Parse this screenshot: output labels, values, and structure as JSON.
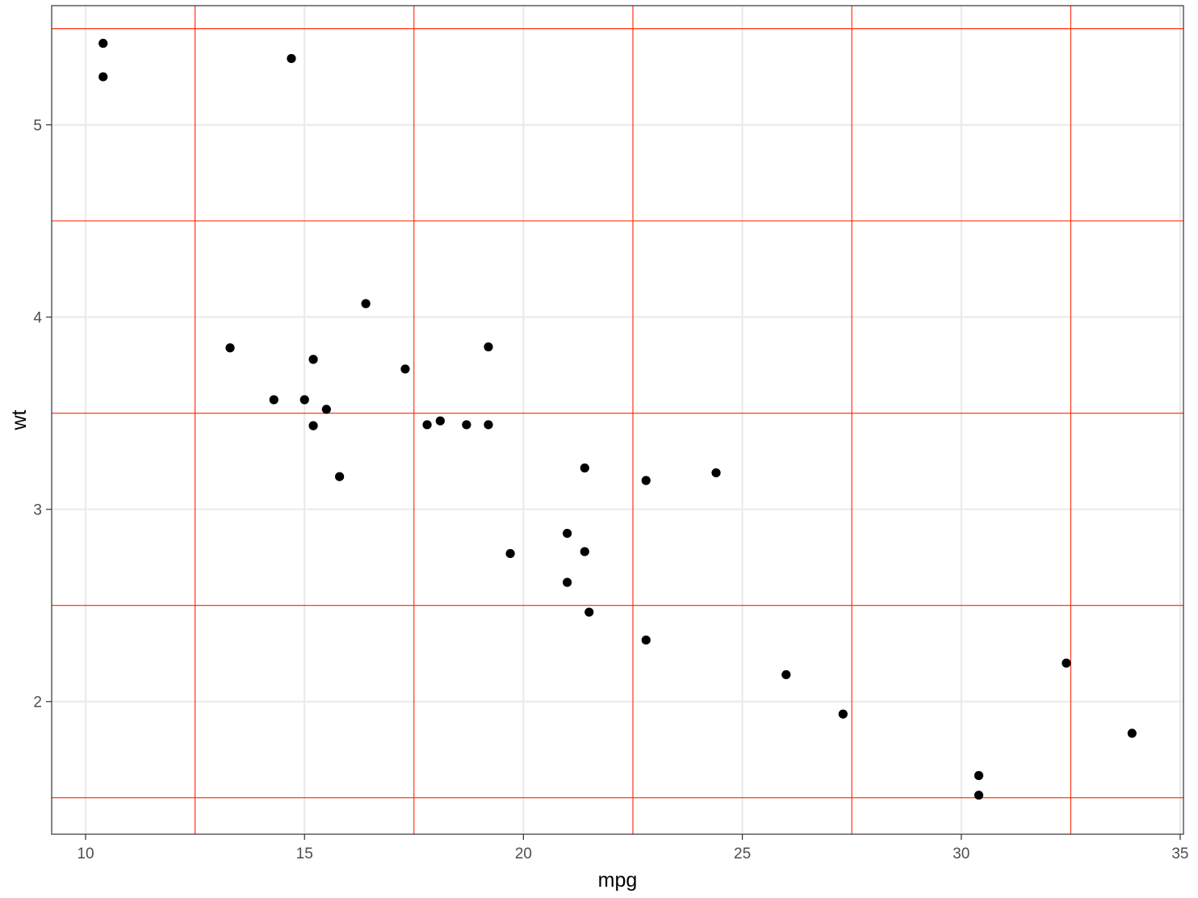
{
  "chart_data": {
    "type": "scatter",
    "title": "",
    "xlabel": "mpg",
    "ylabel": "wt",
    "xlim": [
      9.225,
      35.075
    ],
    "ylim": [
      1.31,
      5.62
    ],
    "x_ticks": [
      10,
      15,
      20,
      25,
      30,
      35
    ],
    "x_tick_labels": [
      "10",
      "15",
      "20",
      "25",
      "30",
      "35"
    ],
    "y_ticks": [
      2,
      3,
      4,
      5
    ],
    "y_tick_labels": [
      "2",
      "3",
      "4",
      "5"
    ],
    "x_minor_gridlines": [
      12.5,
      17.5,
      22.5,
      27.5,
      32.5
    ],
    "y_minor_gridlines": [
      1.5,
      2.5,
      3.5,
      4.5,
      5.5
    ],
    "grid": true,
    "legend": "none",
    "colors": {
      "point": "#000000",
      "major_grid": "#ebebeb",
      "minor_grid": "#ff2200",
      "panel_border": "#333333",
      "background": "#ffffff"
    },
    "points": [
      {
        "x": 21.0,
        "y": 2.62
      },
      {
        "x": 21.0,
        "y": 2.875
      },
      {
        "x": 22.8,
        "y": 2.32
      },
      {
        "x": 21.4,
        "y": 3.215
      },
      {
        "x": 18.7,
        "y": 3.44
      },
      {
        "x": 18.1,
        "y": 3.46
      },
      {
        "x": 14.3,
        "y": 3.57
      },
      {
        "x": 24.4,
        "y": 3.19
      },
      {
        "x": 22.8,
        "y": 3.15
      },
      {
        "x": 19.2,
        "y": 3.44
      },
      {
        "x": 17.8,
        "y": 3.44
      },
      {
        "x": 16.4,
        "y": 4.07
      },
      {
        "x": 17.3,
        "y": 3.73
      },
      {
        "x": 15.2,
        "y": 3.78
      },
      {
        "x": 10.4,
        "y": 5.25
      },
      {
        "x": 10.4,
        "y": 5.424
      },
      {
        "x": 14.7,
        "y": 5.345
      },
      {
        "x": 32.4,
        "y": 2.2
      },
      {
        "x": 30.4,
        "y": 1.615
      },
      {
        "x": 33.9,
        "y": 1.835
      },
      {
        "x": 21.5,
        "y": 2.465
      },
      {
        "x": 15.5,
        "y": 3.52
      },
      {
        "x": 15.2,
        "y": 3.435
      },
      {
        "x": 13.3,
        "y": 3.84
      },
      {
        "x": 19.2,
        "y": 3.845
      },
      {
        "x": 27.3,
        "y": 1.935
      },
      {
        "x": 26.0,
        "y": 2.14
      },
      {
        "x": 30.4,
        "y": 1.513
      },
      {
        "x": 15.8,
        "y": 3.17
      },
      {
        "x": 19.7,
        "y": 2.77
      },
      {
        "x": 15.0,
        "y": 3.57
      },
      {
        "x": 21.4,
        "y": 2.78
      }
    ]
  }
}
